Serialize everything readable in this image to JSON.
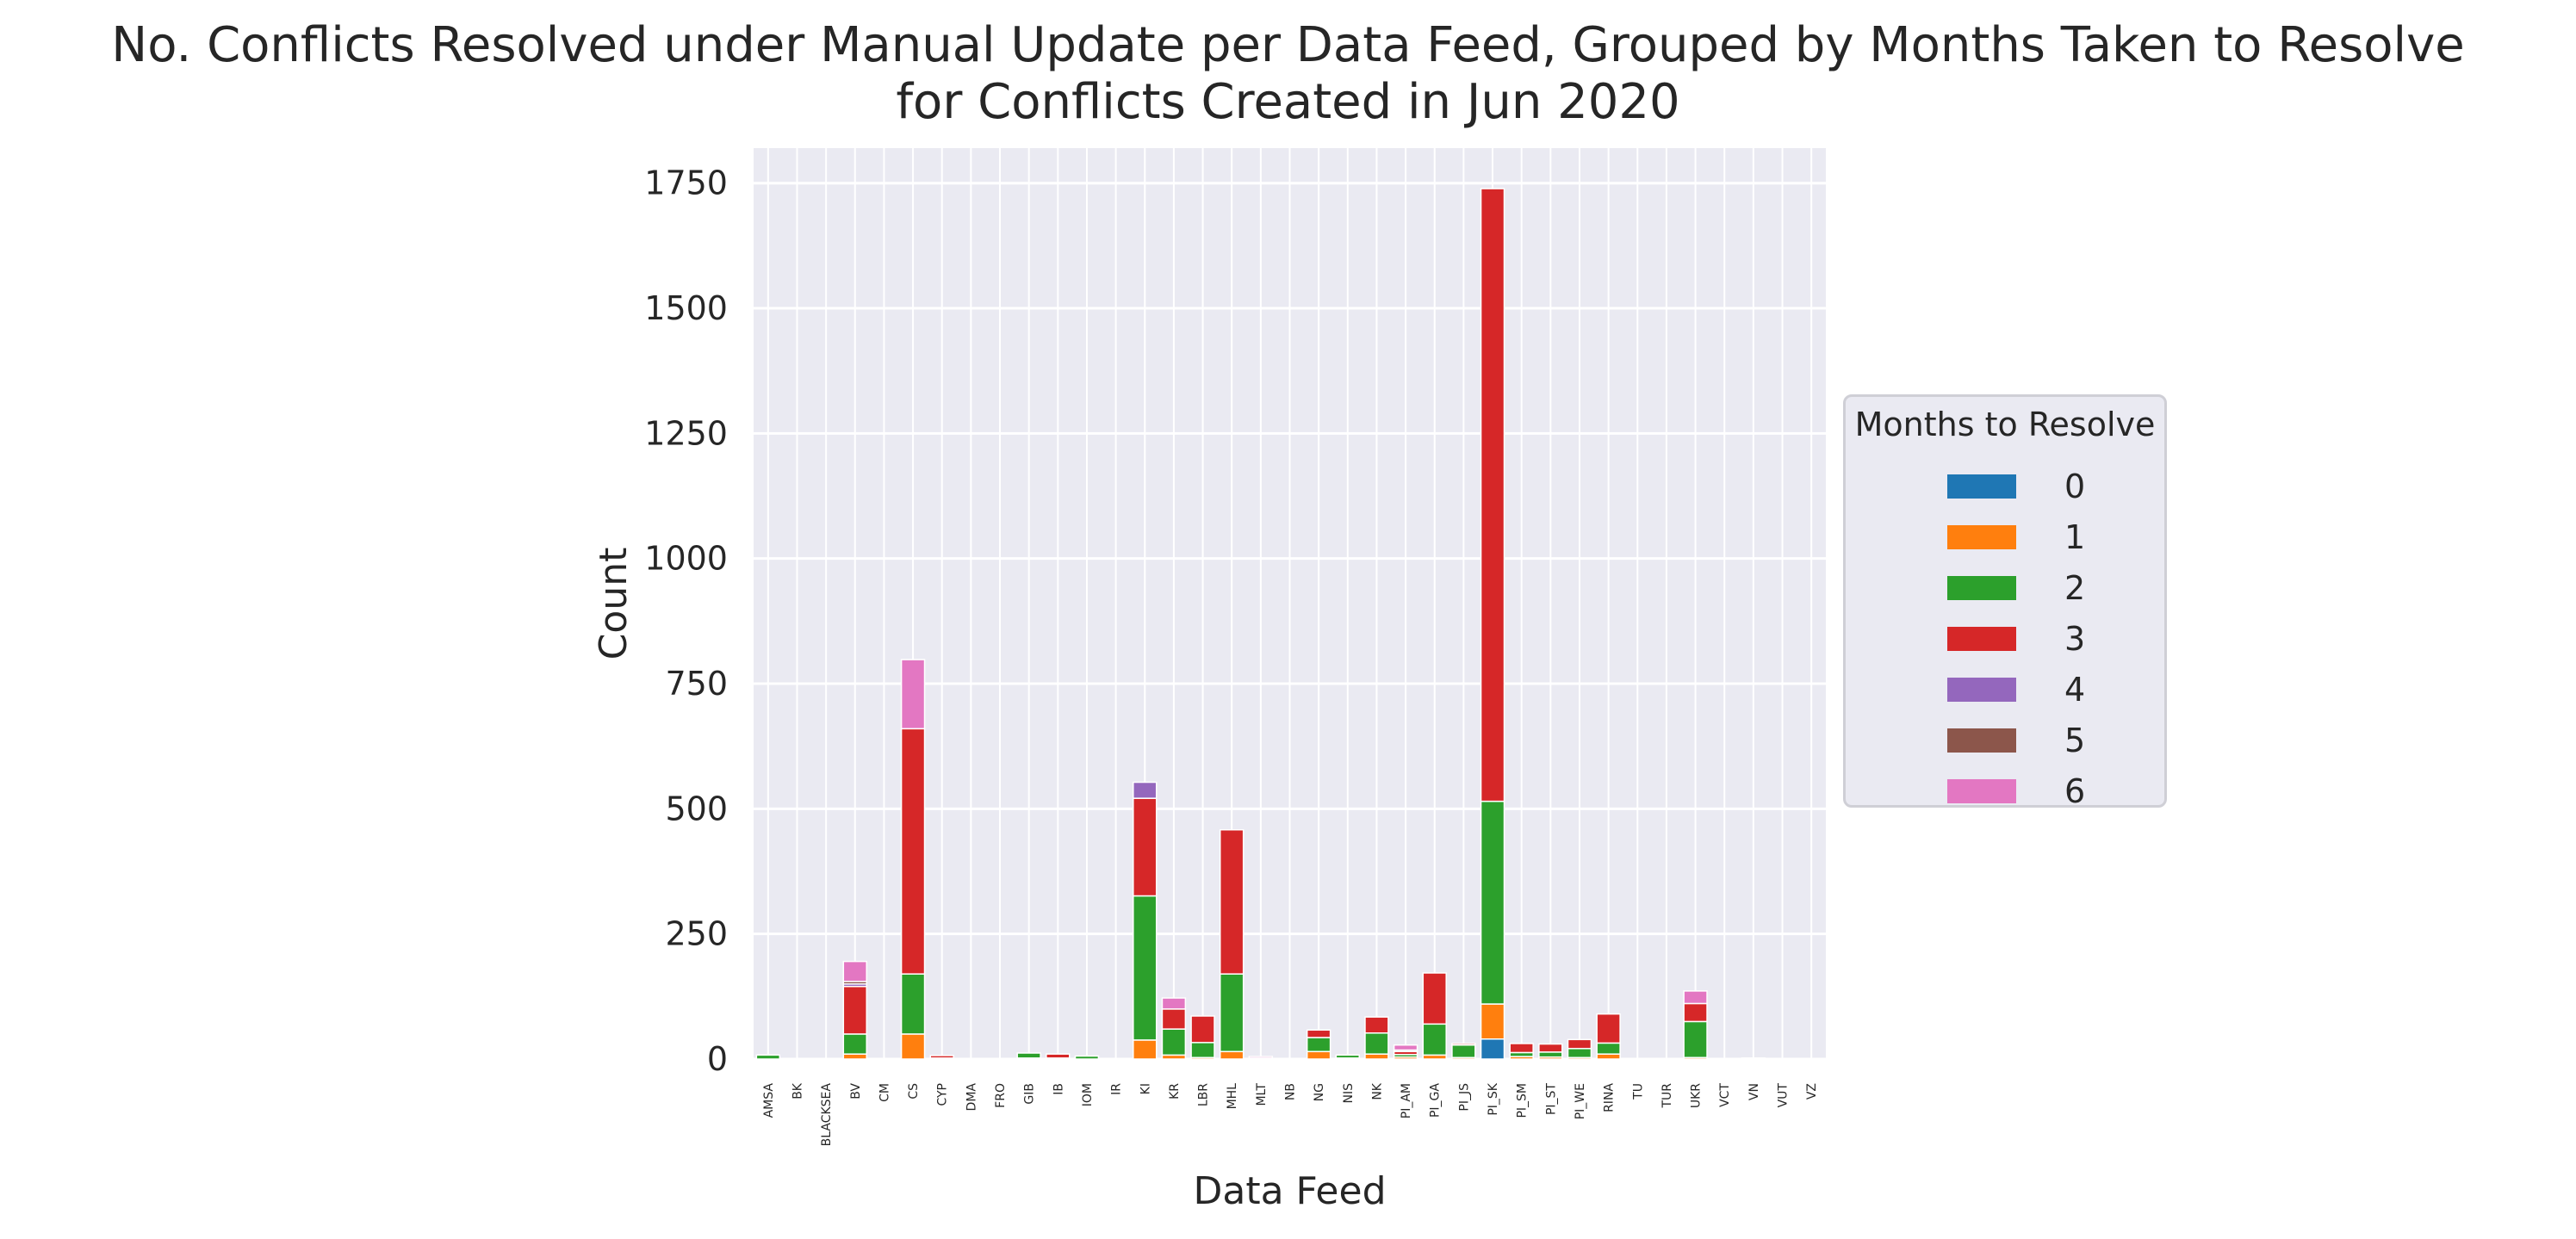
{
  "chart_data": {
    "type": "bar",
    "stacked": true,
    "title_lines": [
      "No. Conflicts Resolved under Manual Update per Data Feed, Grouped by Months Taken to Resolve",
      "for Conflicts Created in Jun 2020"
    ],
    "xlabel": "Data Feed",
    "ylabel": "Count",
    "ylim": [
      0,
      1820
    ],
    "yticks": [
      0,
      250,
      500,
      750,
      1000,
      1250,
      1500,
      1750
    ],
    "grid": true,
    "legend_title": "Months to Resolve",
    "legend_position": "center-right",
    "categories": [
      "AMSA",
      "BK",
      "BLACKSEA",
      "BV",
      "CM",
      "CS",
      "CYP",
      "DMA",
      "FRO",
      "GIB",
      "IB",
      "IOM",
      "IR",
      "KI",
      "KR",
      "LBR",
      "MHL",
      "MLT",
      "NB",
      "NG",
      "NIS",
      "NK",
      "PI_AM",
      "PI_GA",
      "PI_JS",
      "PI_SK",
      "PI_SM",
      "PI_ST",
      "PI_WE",
      "RINA",
      "TU",
      "TUR",
      "UKR",
      "VCT",
      "VN",
      "VUT",
      "VZ"
    ],
    "series": [
      {
        "name": "0",
        "color": "#1f77b4",
        "values": [
          0,
          0,
          0,
          0,
          0,
          0,
          0,
          0,
          0,
          0,
          0,
          0,
          0,
          0,
          0,
          0,
          0,
          0,
          0,
          0,
          0,
          0,
          0,
          0,
          0,
          40,
          0,
          0,
          0,
          0,
          0,
          0,
          0,
          0,
          0,
          0,
          0
        ]
      },
      {
        "name": "1",
        "color": "#ff7f0e",
        "values": [
          0,
          0,
          0,
          10,
          0,
          50,
          2,
          0,
          0,
          2,
          2,
          0,
          0,
          38,
          8,
          3,
          15,
          0,
          0,
          15,
          2,
          10,
          4,
          8,
          3,
          70,
          5,
          4,
          3,
          10,
          0,
          0,
          3,
          0,
          2,
          0,
          0
        ]
      },
      {
        "name": "2",
        "color": "#2ca02c",
        "values": [
          8,
          0,
          0,
          40,
          0,
          120,
          0,
          0,
          0,
          10,
          0,
          6,
          0,
          288,
          52,
          30,
          155,
          0,
          0,
          28,
          6,
          42,
          5,
          62,
          25,
          405,
          8,
          10,
          18,
          22,
          0,
          0,
          72,
          0,
          0,
          0,
          0
        ]
      },
      {
        "name": "3",
        "color": "#d62728",
        "values": [
          0,
          0,
          0,
          95,
          0,
          490,
          5,
          0,
          0,
          0,
          8,
          0,
          0,
          195,
          40,
          53,
          288,
          2,
          0,
          15,
          0,
          32,
          6,
          102,
          3,
          1224,
          18,
          16,
          18,
          58,
          0,
          0,
          36,
          0,
          0,
          0,
          0
        ]
      },
      {
        "name": "4",
        "color": "#9467bd",
        "values": [
          0,
          0,
          0,
          5,
          0,
          0,
          0,
          0,
          0,
          0,
          0,
          0,
          0,
          32,
          0,
          0,
          0,
          0,
          0,
          0,
          0,
          0,
          3,
          0,
          0,
          0,
          0,
          0,
          0,
          0,
          0,
          0,
          0,
          0,
          0,
          0,
          0
        ]
      },
      {
        "name": "5",
        "color": "#8c564b",
        "values": [
          0,
          0,
          0,
          5,
          0,
          0,
          0,
          0,
          0,
          0,
          0,
          0,
          0,
          0,
          0,
          0,
          0,
          0,
          0,
          0,
          0,
          0,
          0,
          0,
          0,
          0,
          0,
          0,
          0,
          0,
          0,
          0,
          0,
          0,
          0,
          0,
          0
        ]
      },
      {
        "name": "6",
        "color": "#e377c2",
        "values": [
          0,
          0,
          0,
          40,
          0,
          138,
          0,
          0,
          0,
          0,
          0,
          0,
          0,
          0,
          22,
          0,
          0,
          3,
          0,
          0,
          0,
          0,
          10,
          0,
          0,
          0,
          0,
          0,
          0,
          0,
          0,
          0,
          25,
          0,
          0,
          0,
          0
        ]
      }
    ]
  }
}
